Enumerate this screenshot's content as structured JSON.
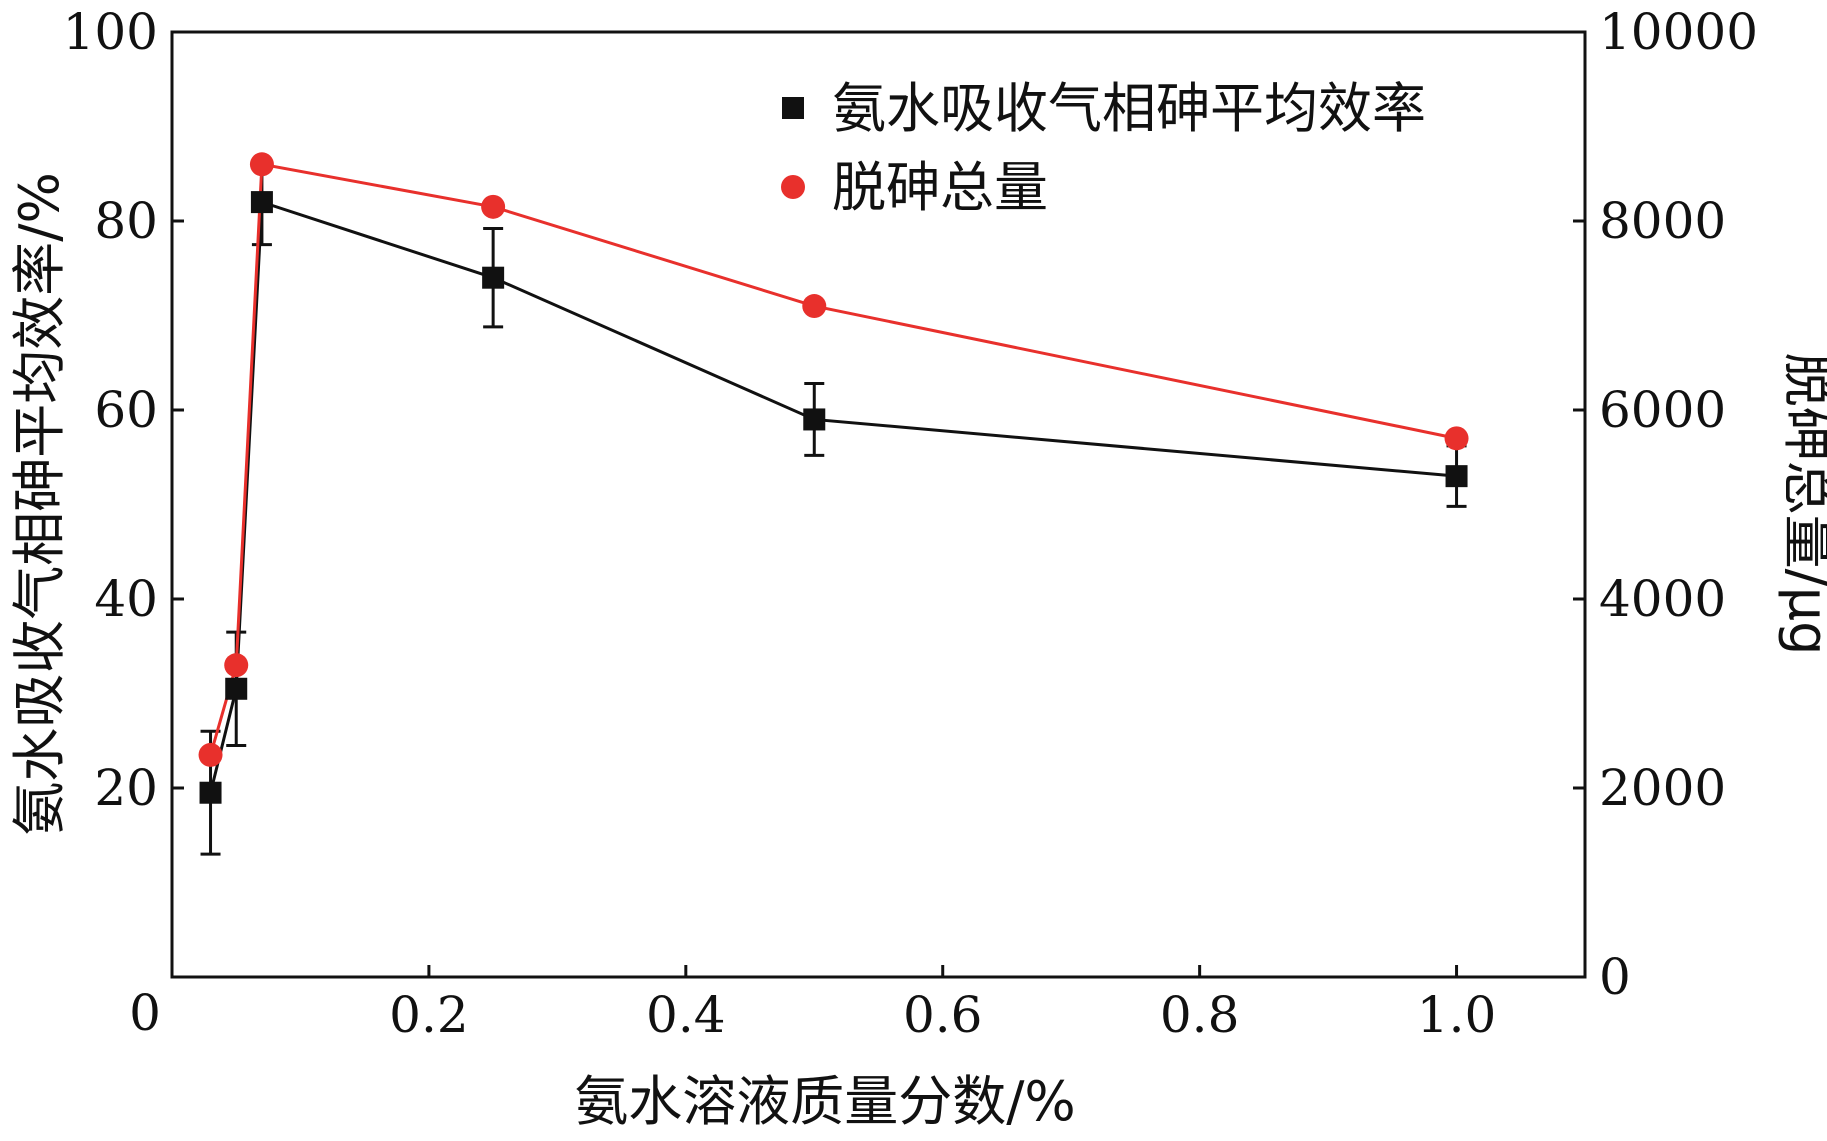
{
  "chart_data": {
    "type": "line",
    "title": "",
    "xlabel": "氨水溶液质量分数/%",
    "ylabel_left": "氨水吸收气相砷平均效率/%",
    "ylabel_right": "脱砷总量/μg",
    "xlim": [
      0,
      1.1
    ],
    "ylim_left": [
      0,
      100
    ],
    "ylim_right": [
      0,
      10000
    ],
    "x_ticks": [
      0.2,
      0.4,
      0.6,
      0.8,
      1.0
    ],
    "x_tick_labels": [
      "0.2",
      "0.4",
      "0.6",
      "0.8",
      "1.0"
    ],
    "x_origin_label": "0",
    "y_left_ticks": [
      20,
      40,
      60,
      80,
      100
    ],
    "y_left_tick_labels": [
      "20",
      "40",
      "60",
      "80",
      "100"
    ],
    "y_right_ticks": [
      0,
      2000,
      4000,
      6000,
      8000,
      10000
    ],
    "y_right_tick_labels": [
      "0",
      "2000",
      "4000",
      "6000",
      "8000",
      "10000"
    ],
    "legend_position": "top-right",
    "grid": false,
    "series": [
      {
        "name": "氨水吸收气相砷平均效率",
        "axis": "left",
        "color": "#111111",
        "marker": "square",
        "x": [
          0.03,
          0.05,
          0.07,
          0.25,
          0.5,
          1.0
        ],
        "y": [
          19.5,
          30.5,
          82.0,
          74.0,
          59.0,
          53.0
        ],
        "error": [
          6.5,
          6.0,
          4.5,
          5.2,
          3.8,
          3.2
        ]
      },
      {
        "name": "脱砷总量",
        "axis": "right",
        "color": "#e8302c",
        "marker": "circle",
        "x": [
          0.03,
          0.05,
          0.07,
          0.25,
          0.5,
          1.0
        ],
        "y": [
          2350,
          3300,
          8600,
          8150,
          7100,
          5700
        ]
      }
    ]
  }
}
